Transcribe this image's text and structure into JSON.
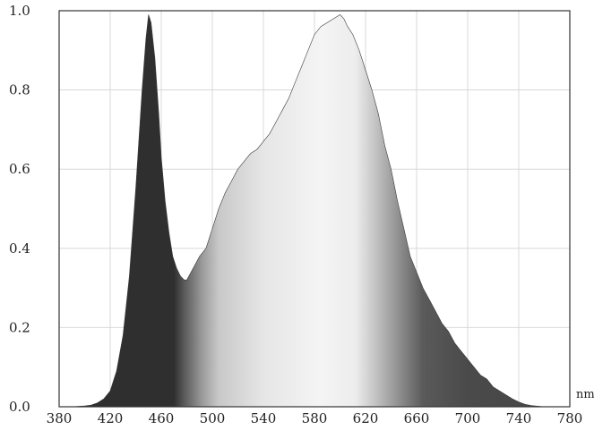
{
  "chart_data": {
    "type": "area",
    "title": "",
    "xlabel": "",
    "ylabel": "",
    "x_unit": "nm",
    "xlim": [
      380,
      780
    ],
    "ylim": [
      0.0,
      1.0
    ],
    "x_ticks": [
      "380",
      "420",
      "460",
      "500",
      "540",
      "580",
      "620",
      "660",
      "700",
      "740",
      "780"
    ],
    "y_ticks": [
      "0.0",
      "0.2",
      "0.4",
      "0.6",
      "0.8",
      "1.0"
    ],
    "grid": true,
    "colors": {
      "fill_dark": "#2f2f2f",
      "fill_mid": "#5a5a5a",
      "fill_light": "#f4f4f4",
      "frame": "#333333"
    },
    "series": [
      {
        "x": [
          380,
          390,
          400,
          405,
          410,
          415,
          420,
          425,
          430,
          435,
          440,
          445,
          448,
          450,
          452,
          455,
          458,
          460,
          463,
          466,
          469,
          472,
          475,
          478,
          480,
          485,
          490,
          495,
          500,
          505,
          510,
          515,
          520,
          525,
          530,
          535,
          540,
          545,
          550,
          555,
          560,
          565,
          570,
          575,
          580,
          585,
          590,
          595,
          600,
          603,
          606,
          610,
          615,
          620,
          625,
          630,
          635,
          640,
          645,
          650,
          655,
          660,
          665,
          670,
          675,
          680,
          685,
          690,
          695,
          700,
          705,
          710,
          715,
          720,
          725,
          730,
          735,
          740,
          745,
          750,
          760,
          780
        ],
        "values": [
          0.0,
          0.0,
          0.002,
          0.004,
          0.01,
          0.02,
          0.04,
          0.09,
          0.18,
          0.33,
          0.55,
          0.8,
          0.93,
          0.99,
          0.97,
          0.88,
          0.74,
          0.63,
          0.52,
          0.44,
          0.38,
          0.35,
          0.33,
          0.32,
          0.32,
          0.35,
          0.38,
          0.4,
          0.45,
          0.5,
          0.54,
          0.57,
          0.6,
          0.62,
          0.64,
          0.65,
          0.67,
          0.69,
          0.72,
          0.75,
          0.78,
          0.82,
          0.86,
          0.9,
          0.94,
          0.96,
          0.97,
          0.98,
          0.99,
          0.98,
          0.96,
          0.94,
          0.9,
          0.85,
          0.8,
          0.74,
          0.66,
          0.6,
          0.52,
          0.45,
          0.38,
          0.34,
          0.3,
          0.27,
          0.24,
          0.21,
          0.19,
          0.16,
          0.14,
          0.12,
          0.1,
          0.08,
          0.07,
          0.05,
          0.04,
          0.03,
          0.02,
          0.012,
          0.006,
          0.003,
          0.0,
          0.0
        ]
      }
    ]
  }
}
